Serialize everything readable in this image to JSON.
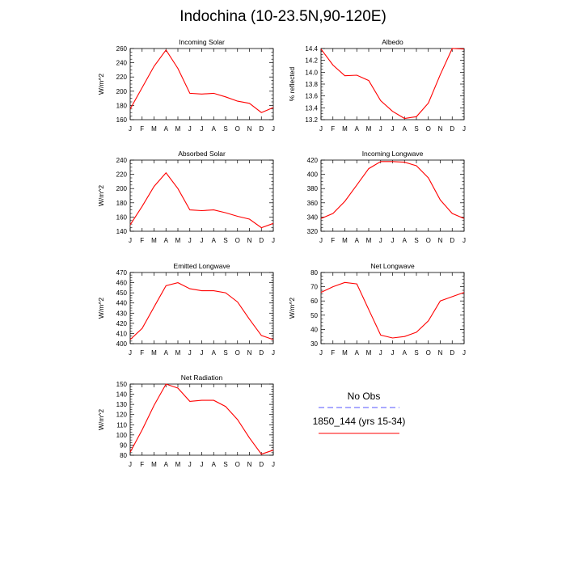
{
  "figure": {
    "title": "Indochina (10-23.5N,90-120E)",
    "line_color": "#ff0000",
    "obs_line_color": "#7777ff"
  },
  "legend": {
    "obs_label": "No Obs",
    "model_label": "1850_144 (yrs 15-34)"
  },
  "chart_data": [
    {
      "type": "line",
      "title": "Incoming Solar",
      "ylabel": "W/m^2",
      "categories": [
        "J",
        "F",
        "M",
        "A",
        "M",
        "J",
        "J",
        "A",
        "S",
        "O",
        "N",
        "D",
        "J"
      ],
      "ylim": [
        160,
        260
      ],
      "yticks": [
        160,
        180,
        200,
        220,
        240,
        260
      ],
      "ytick_labels": [
        "160",
        "180",
        "200",
        "220",
        "240",
        "260"
      ],
      "series": [
        {
          "values": [
            175,
            205,
            235,
            258,
            232,
            197,
            196,
            197,
            192,
            186,
            183,
            170,
            177
          ]
        }
      ]
    },
    {
      "type": "line",
      "title": "Albedo",
      "ylabel": "% reflected",
      "categories": [
        "J",
        "F",
        "M",
        "A",
        "M",
        "J",
        "J",
        "A",
        "S",
        "O",
        "N",
        "D",
        "J"
      ],
      "ylim": [
        13.2,
        14.4
      ],
      "yticks": [
        13.2,
        13.4,
        13.6,
        13.8,
        14.0,
        14.2,
        14.4
      ],
      "ytick_labels": [
        "13.2",
        "13.4",
        "13.6",
        "13.8",
        "14.0",
        "14.2",
        "14.4"
      ],
      "series": [
        {
          "values": [
            14.39,
            14.12,
            13.94,
            13.95,
            13.86,
            13.52,
            13.34,
            13.22,
            13.25,
            13.48,
            13.96,
            14.4,
            14.39
          ]
        }
      ]
    },
    {
      "type": "line",
      "title": "Absorbed Solar",
      "ylabel": "W/m^2",
      "categories": [
        "J",
        "F",
        "M",
        "A",
        "M",
        "J",
        "J",
        "A",
        "S",
        "O",
        "N",
        "D",
        "J"
      ],
      "ylim": [
        140,
        240
      ],
      "yticks": [
        140,
        160,
        180,
        200,
        220,
        240
      ],
      "ytick_labels": [
        "140",
        "160",
        "180",
        "200",
        "220",
        "240"
      ],
      "series": [
        {
          "values": [
            149,
            175,
            203,
            222,
            200,
            170,
            169,
            170,
            166,
            161,
            157,
            145,
            151
          ]
        }
      ]
    },
    {
      "type": "line",
      "title": "Incoming Longwave",
      "ylabel": "",
      "categories": [
        "J",
        "F",
        "M",
        "A",
        "M",
        "J",
        "J",
        "A",
        "S",
        "O",
        "N",
        "D",
        "J"
      ],
      "ylim": [
        320,
        420
      ],
      "yticks": [
        320,
        340,
        360,
        380,
        400,
        420
      ],
      "ytick_labels": [
        "320",
        "340",
        "360",
        "380",
        "400",
        "420"
      ],
      "series": [
        {
          "values": [
            338,
            345,
            362,
            385,
            408,
            418,
            418,
            417,
            412,
            395,
            364,
            345,
            338
          ]
        }
      ]
    },
    {
      "type": "line",
      "title": "Emitted Longwave",
      "ylabel": "W/m^2",
      "categories": [
        "J",
        "F",
        "M",
        "A",
        "M",
        "J",
        "J",
        "A",
        "S",
        "O",
        "N",
        "D",
        "J"
      ],
      "ylim": [
        400,
        470
      ],
      "yticks": [
        400,
        410,
        420,
        430,
        440,
        450,
        460,
        470
      ],
      "ytick_labels": [
        "400",
        "410",
        "420",
        "430",
        "440",
        "450",
        "460",
        "470"
      ],
      "series": [
        {
          "values": [
            404,
            415,
            436,
            457,
            460,
            454,
            452,
            452,
            450,
            441,
            424,
            408,
            404
          ]
        }
      ]
    },
    {
      "type": "line",
      "title": "Net Longwave",
      "ylabel": "W/m^2",
      "categories": [
        "J",
        "F",
        "M",
        "A",
        "M",
        "J",
        "J",
        "A",
        "S",
        "O",
        "N",
        "D",
        "J"
      ],
      "ylim": [
        30,
        80
      ],
      "yticks": [
        30,
        40,
        50,
        60,
        70,
        80
      ],
      "ytick_labels": [
        "30",
        "40",
        "50",
        "60",
        "70",
        "80"
      ],
      "series": [
        {
          "values": [
            66,
            70,
            73,
            72,
            54,
            36,
            34,
            35,
            38,
            46,
            60,
            63,
            66
          ]
        }
      ]
    },
    {
      "type": "line",
      "title": "Net Radiation",
      "ylabel": "W/m^2",
      "categories": [
        "J",
        "F",
        "M",
        "A",
        "M",
        "J",
        "J",
        "A",
        "S",
        "O",
        "N",
        "D",
        "J"
      ],
      "ylim": [
        80,
        150
      ],
      "yticks": [
        80,
        90,
        100,
        110,
        120,
        130,
        140,
        150
      ],
      "ytick_labels": [
        "80",
        "90",
        "100",
        "110",
        "120",
        "130",
        "140",
        "150"
      ],
      "series": [
        {
          "values": [
            83,
            105,
            129,
            150,
            146,
            133,
            134,
            134,
            128,
            115,
            97,
            81,
            85
          ]
        }
      ]
    }
  ]
}
